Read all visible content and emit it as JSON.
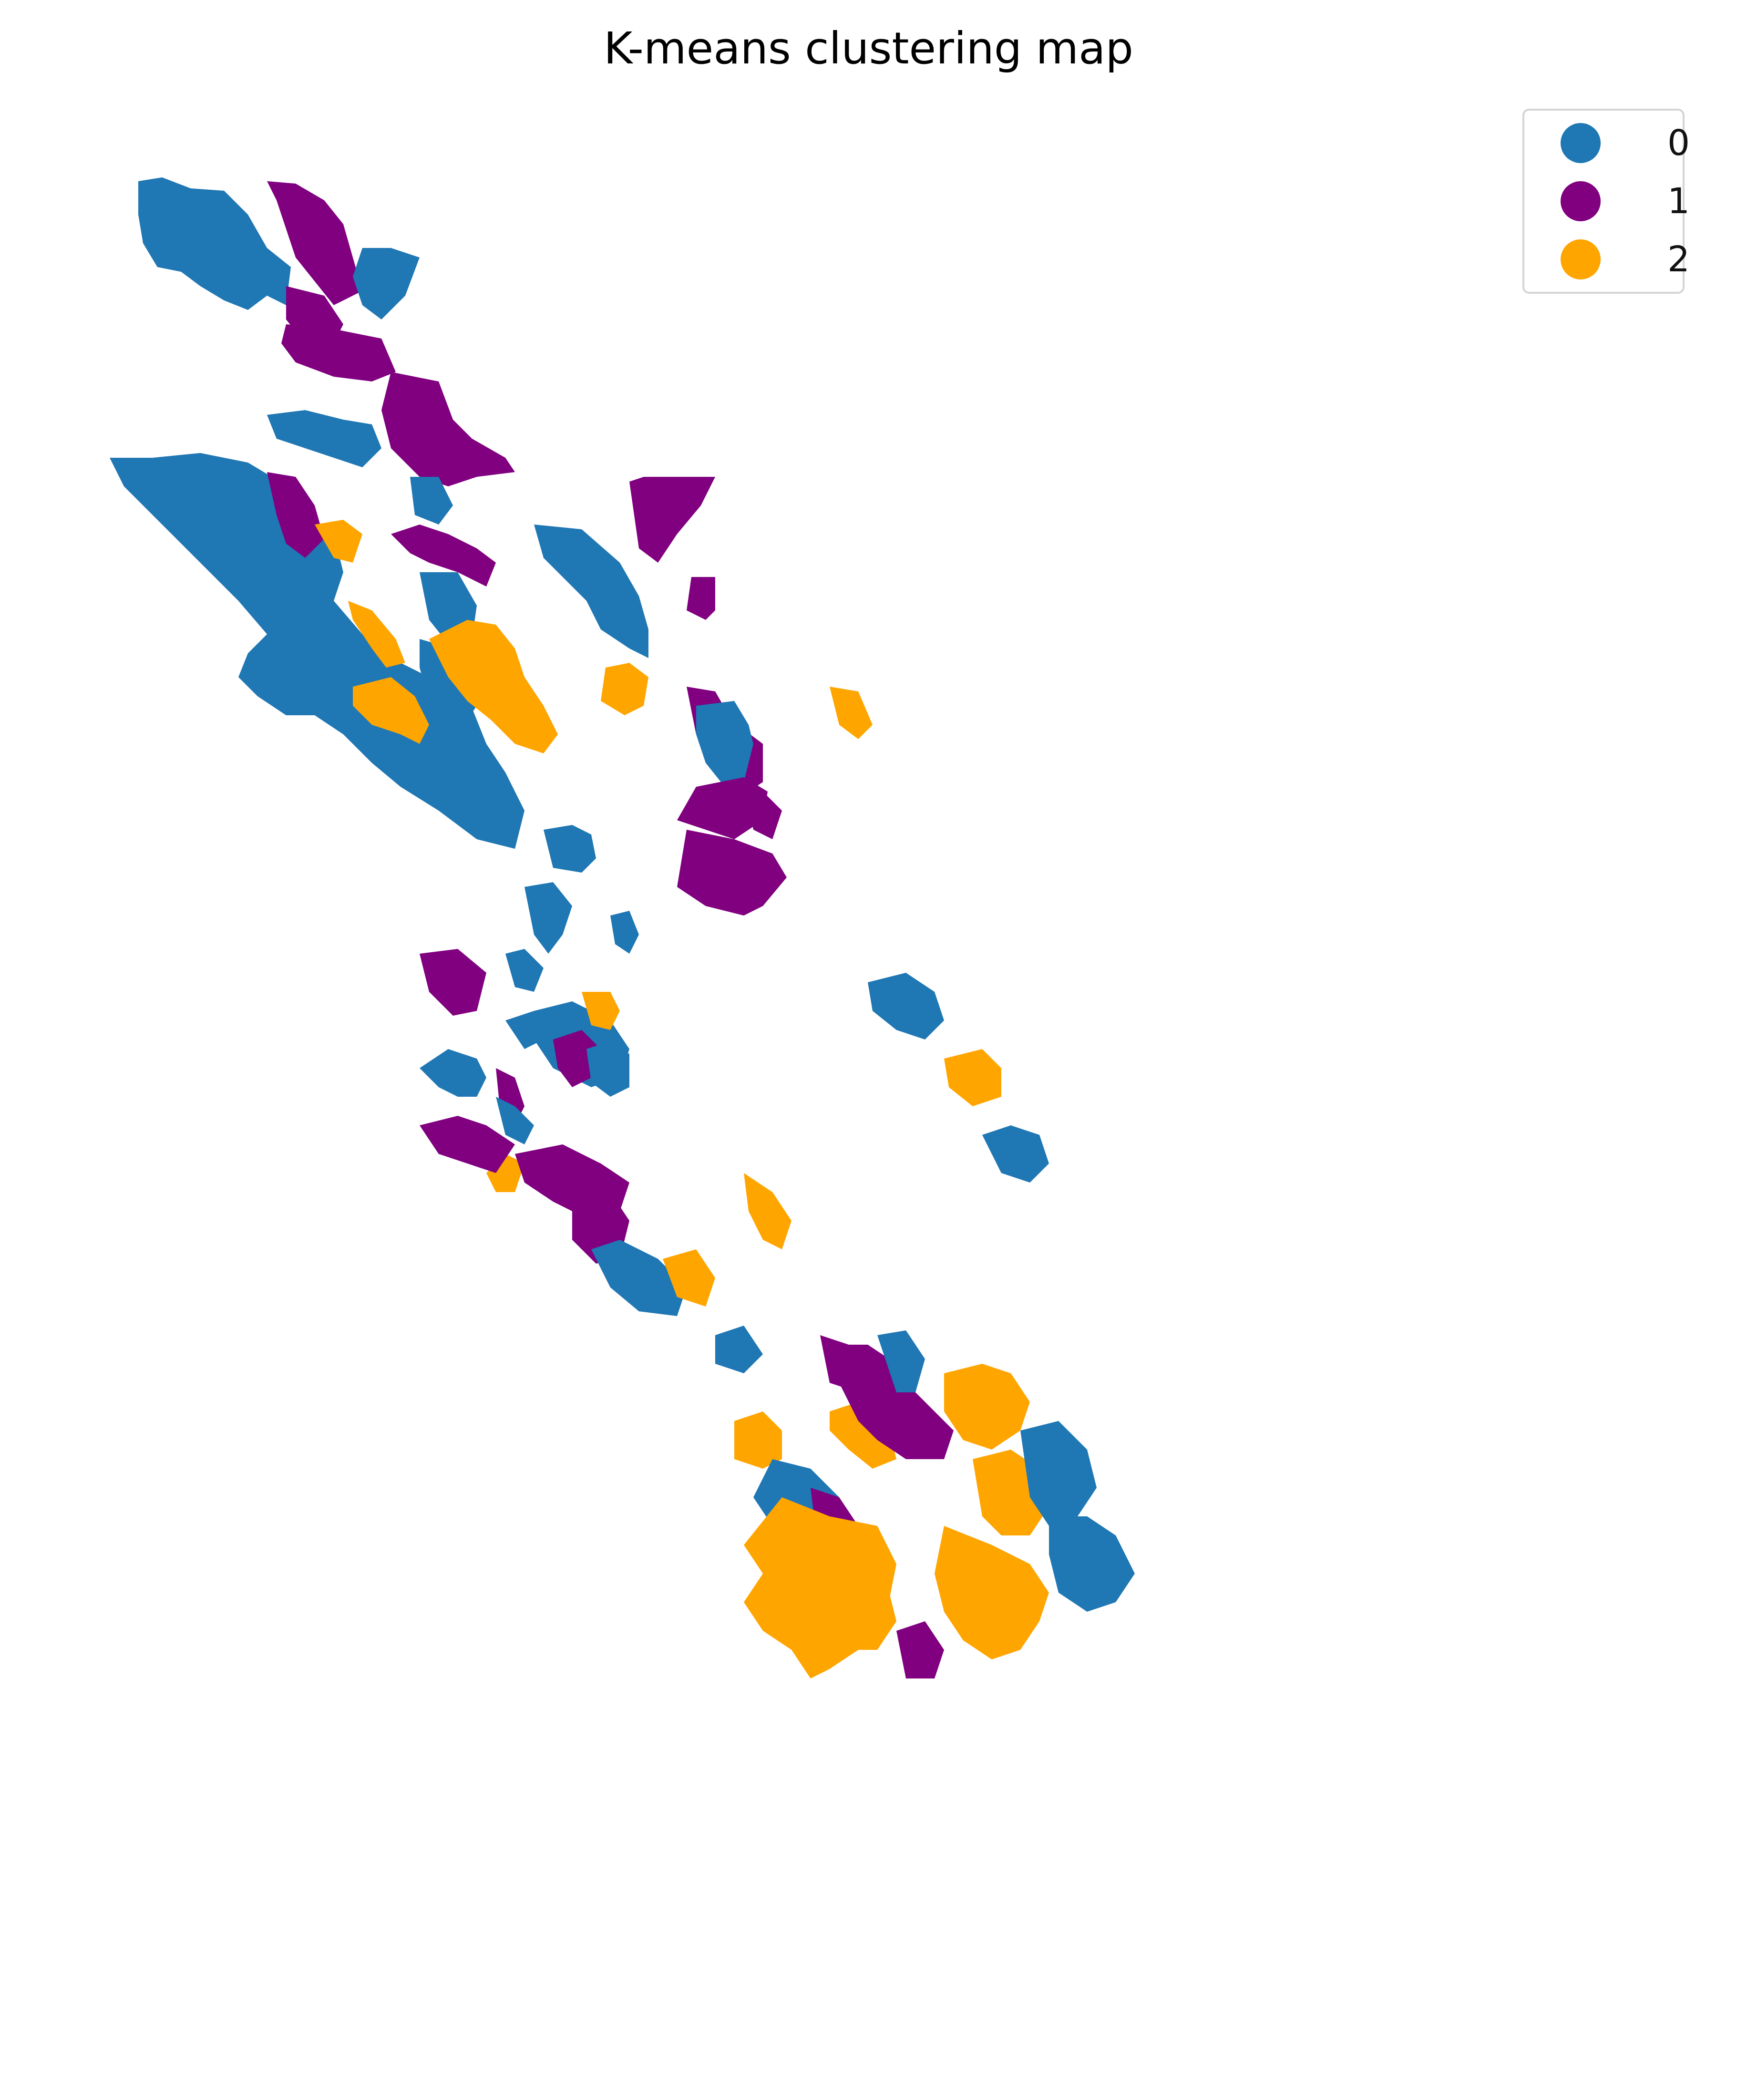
{
  "title": "K-means clustering map",
  "legend": {
    "entries": [
      {
        "label": "0",
        "color": "#1f77b4"
      },
      {
        "label": "1",
        "color": "#800080"
      },
      {
        "label": "2",
        "color": "#ffa500"
      }
    ]
  },
  "map": {
    "background": "#ffffff",
    "region_clusters": [
      "0",
      "1",
      "0",
      "1",
      "1",
      "1",
      "0",
      "1",
      "0",
      "1",
      "0",
      "2",
      "0",
      "2",
      "2",
      "0",
      "2",
      "0",
      "0",
      "1",
      "1",
      "0",
      "2",
      "1",
      "1",
      "0",
      "1",
      "2",
      "1",
      "1",
      "0",
      "0",
      "0",
      "1",
      "0",
      "2",
      "0",
      "1",
      "0",
      "0",
      "2",
      "0",
      "1",
      "1",
      "0",
      "1",
      "1",
      "0",
      "0",
      "2",
      "2",
      "1",
      "2",
      "1",
      "2",
      "1",
      "0",
      "2",
      "0",
      "1",
      "2",
      "2",
      "2",
      "0",
      "0",
      "2",
      "1",
      "0",
      "2",
      "0"
    ]
  }
}
